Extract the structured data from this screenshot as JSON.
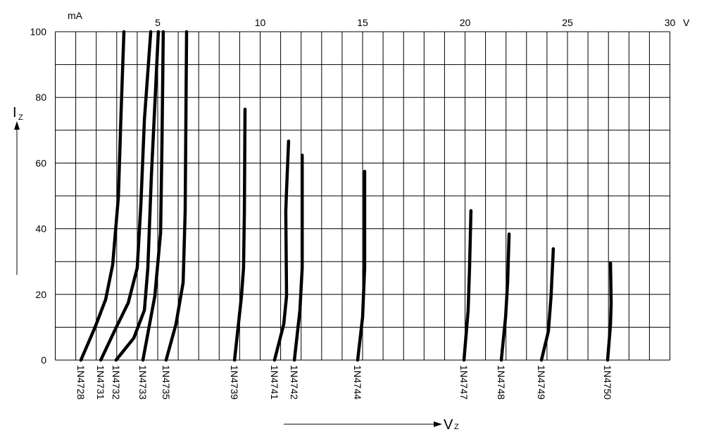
{
  "chart_data": {
    "type": "line",
    "y_unit": "mA",
    "x_unit": "V",
    "y_label": {
      "symbol": "I",
      "subscript": "Z"
    },
    "x_label": {
      "symbol": "V",
      "subscript": "Z"
    },
    "xlim": [
      0,
      30
    ],
    "ylim": [
      0,
      100
    ],
    "xticks": [
      5,
      10,
      15,
      20,
      25,
      30
    ],
    "yticks": [
      0,
      20,
      40,
      60,
      80,
      100
    ],
    "grid": true,
    "x_grid_step": 1,
    "y_grid_step": 10,
    "series": [
      {
        "name": "1N4728",
        "color": "#000000",
        "x": [
          1.25,
          1.94,
          2.46,
          2.8,
          3.08,
          3.21,
          3.35
        ],
        "values": [
          0,
          10,
          18.5,
          29,
          49.6,
          75,
          100
        ]
      },
      {
        "name": "1N4731",
        "color": "#000000",
        "x": [
          2.22,
          2.97,
          3.56,
          4.0,
          4.18,
          4.35,
          4.66
        ],
        "values": [
          0,
          9.9,
          17.4,
          28.1,
          47.4,
          73.2,
          100
        ]
      },
      {
        "name": "1N4732",
        "color": "#000000",
        "x": [
          2.97,
          3.83,
          4.35,
          4.52,
          4.69,
          5.03
        ],
        "values": [
          0,
          6.7,
          15.2,
          28.1,
          56,
          100
        ]
      },
      {
        "name": "1N4733",
        "color": "#000000",
        "x": [
          4.28,
          4.86,
          5.14,
          5.21,
          5.27
        ],
        "values": [
          0,
          19.5,
          38.8,
          66.7,
          100
        ]
      },
      {
        "name": "1N4735",
        "color": "#000000",
        "x": [
          5.41,
          5.89,
          6.24,
          6.34,
          6.41
        ],
        "values": [
          0,
          10.9,
          23.6,
          45.3,
          100
        ]
      },
      {
        "name": "1N4739",
        "color": "#000000",
        "x": [
          8.75,
          9.09,
          9.19,
          9.23,
          9.26
        ],
        "values": [
          0,
          19.5,
          28.1,
          45.3,
          76.4
        ]
      },
      {
        "name": "1N4741",
        "color": "#000000",
        "x": [
          10.7,
          11.15,
          11.29,
          11.25,
          11.29,
          11.39
        ],
        "values": [
          0,
          10.9,
          19.5,
          45.3,
          51.7,
          66.7
        ]
      },
      {
        "name": "1N4742",
        "color": "#000000",
        "x": [
          11.67,
          11.94,
          12.05,
          12.05
        ],
        "values": [
          0,
          15.2,
          28.1,
          62.4
        ]
      },
      {
        "name": "1N4744",
        "color": "#000000",
        "x": [
          14.76,
          15.0,
          15.1,
          15.1
        ],
        "values": [
          0,
          13.1,
          28.1,
          57.5
        ]
      },
      {
        "name": "1N4747",
        "color": "#000000",
        "x": [
          19.95,
          20.15,
          20.22,
          20.29
        ],
        "values": [
          0,
          15.2,
          28.1,
          45.5
        ]
      },
      {
        "name": "1N4748",
        "color": "#000000",
        "x": [
          21.77,
          21.98,
          22.08,
          22.15
        ],
        "values": [
          0,
          13.1,
          23.8,
          38.4
        ]
      },
      {
        "name": "1N4749",
        "color": "#000000",
        "x": [
          23.73,
          24.07,
          24.2,
          24.31
        ],
        "values": [
          0,
          8.8,
          19.5,
          33.9
        ]
      },
      {
        "name": "1N4750",
        "color": "#000000",
        "x": [
          26.96,
          27.1,
          27.13,
          27.1
        ],
        "values": [
          0,
          10.9,
          17.4,
          29.6
        ]
      }
    ]
  }
}
